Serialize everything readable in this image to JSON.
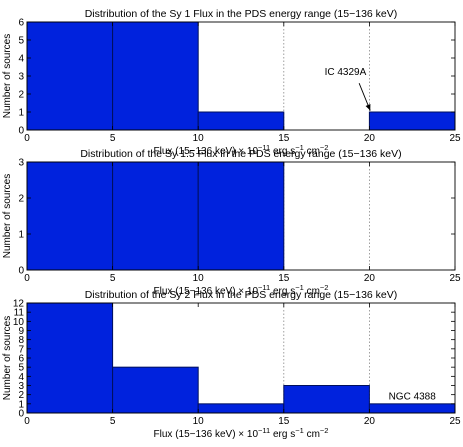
{
  "chart_data": [
    {
      "type": "bar",
      "title": "Distribution of the Sy 1 Flux in the PDS energy range (15−136 keV)",
      "xlabel": {
        "pre": "Flux (15−136 keV) × 10",
        "sup1": "−11",
        "mid": " erg s",
        "sup2": "−1",
        "mid2": " cm",
        "sup3": "−2"
      },
      "ylabel": "Number of sources",
      "xlim": [
        0,
        25
      ],
      "ylim": [
        0,
        6
      ],
      "xticks": [
        "0",
        "5",
        "10",
        "15",
        "20",
        "25"
      ],
      "yticks": [
        "0",
        "1",
        "2",
        "3",
        "4",
        "5",
        "6"
      ],
      "bin_edges": [
        0,
        5,
        10,
        15,
        20,
        25
      ],
      "values": [
        6,
        6,
        1,
        0,
        1
      ],
      "grid": "dotted vertical lines at x = 15 and 20",
      "annotations": [
        {
          "text": "IC 4329A",
          "x": 22.5,
          "y": 1
        }
      ]
    },
    {
      "type": "bar",
      "title": "Distribution of the Sy 1.5 Flux in the PDS energy range (15−136 keV)",
      "xlabel": {
        "pre": "Flux (15−136 keV) × 10",
        "sup1": "−11",
        "mid": " erg s",
        "sup2": "−1",
        "mid2": " cm",
        "sup3": "−2"
      },
      "ylabel": "Number of sources",
      "xlim": [
        0,
        25
      ],
      "ylim": [
        0,
        3
      ],
      "xticks": [
        "0",
        "5",
        "10",
        "15",
        "20",
        "25"
      ],
      "yticks": [
        "0",
        "1",
        "2",
        "3"
      ],
      "bin_edges": [
        0,
        5,
        10,
        15,
        20,
        25
      ],
      "values": [
        3,
        3,
        3,
        0,
        0
      ],
      "grid": "dotted vertical lines at x = 15 and 20",
      "annotations": []
    },
    {
      "type": "bar",
      "title": "Distribution of the Sy 2 Flux in the PDS energy range (15−136 keV)",
      "xlabel": {
        "pre": "Flux (15−136 keV) × 10",
        "sup1": "−11",
        "mid": " erg s",
        "sup2": "−1",
        "mid2": " cm",
        "sup3": "−2"
      },
      "ylabel": "Number of sources",
      "xlim": [
        0,
        25
      ],
      "ylim": [
        0,
        12
      ],
      "xticks": [
        "0",
        "5",
        "10",
        "15",
        "20",
        "25"
      ],
      "yticks": [
        "0",
        "1",
        "2",
        "3",
        "4",
        "5",
        "6",
        "7",
        "8",
        "9",
        "10",
        "11",
        "12"
      ],
      "bin_edges": [
        0,
        5,
        10,
        15,
        20,
        25
      ],
      "values": [
        12,
        5,
        1,
        3,
        1
      ],
      "grid": "dotted vertical lines at x = 15 and 20",
      "annotations": [
        {
          "text": "NGC 4388",
          "x": 22.5,
          "y": 1
        }
      ]
    }
  ],
  "colors": {
    "bar_fill": "#0022dd",
    "bar_edge": "#00105e",
    "axis": "#000000",
    "grid": "#888888"
  }
}
